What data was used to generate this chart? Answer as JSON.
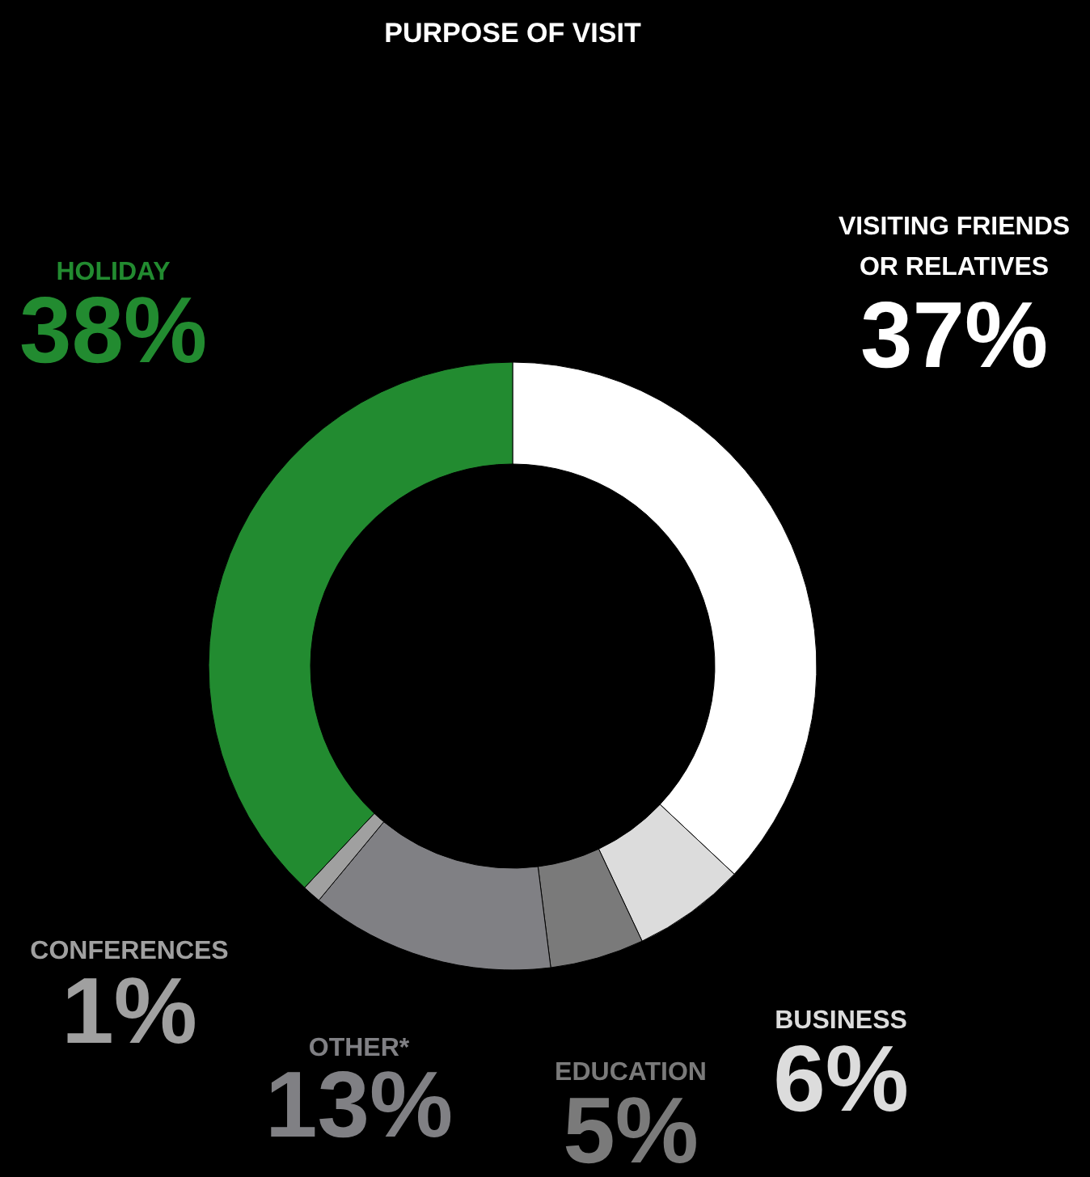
{
  "chart_data": {
    "type": "donut",
    "title": "PURPOSE OF VISIT",
    "categories": [
      "VISITING FRIENDS OR RELATIVES",
      "BUSINESS",
      "EDUCATION",
      "OTHER*",
      "CONFERENCES",
      "HOLIDAY"
    ],
    "values": [
      37,
      6,
      5,
      13,
      1,
      38
    ],
    "value_labels": [
      "37%",
      "6%",
      "5%",
      "13%",
      "1%",
      "38%"
    ],
    "colors": [
      "#ffffff",
      "#dcdcdc",
      "#7a7a7a",
      "#808084",
      "#a0a0a0",
      "#228b30"
    ]
  }
}
